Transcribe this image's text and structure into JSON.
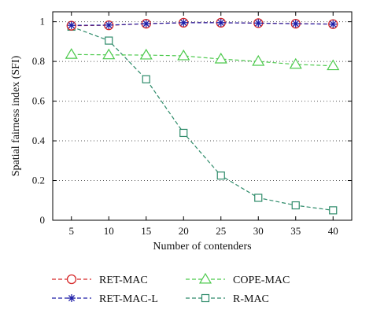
{
  "chart_data": {
    "type": "line",
    "title": "",
    "xlabel": "Number of contenders",
    "ylabel": "Spatial fairness index (SFI)",
    "x": [
      5,
      10,
      15,
      20,
      25,
      30,
      35,
      40
    ],
    "xlim": [
      2.5,
      42.5
    ],
    "ylim": [
      0,
      1.05
    ],
    "xticks": [
      5,
      10,
      15,
      20,
      25,
      30,
      35,
      40
    ],
    "yticks": [
      0,
      0.2,
      0.4,
      0.6,
      0.8,
      1
    ],
    "ytick_labels": [
      "0",
      "0.2",
      "0.4",
      "0.6",
      "0.8",
      "1"
    ],
    "grid": "horizontal dotted",
    "legend_position": "below plot",
    "series": [
      {
        "name": "RET-MAC",
        "values": [
          0.98,
          0.982,
          0.99,
          0.995,
          0.995,
          0.993,
          0.99,
          0.988
        ],
        "color": "#d62728",
        "marker": "circle"
      },
      {
        "name": "RET-MAC-L",
        "values": [
          0.982,
          0.983,
          0.99,
          0.995,
          0.995,
          0.993,
          0.99,
          0.988
        ],
        "color": "#1f1fa8",
        "marker": "asterisk"
      },
      {
        "name": "COPE-MAC",
        "values": [
          0.835,
          0.833,
          0.832,
          0.828,
          0.812,
          0.8,
          0.785,
          0.778
        ],
        "color": "#4cc94c",
        "marker": "triangle"
      },
      {
        "name": "R-MAC",
        "values": [
          0.975,
          0.905,
          0.71,
          0.44,
          0.225,
          0.113,
          0.075,
          0.05
        ],
        "color": "#2e8b6a",
        "marker": "square"
      }
    ]
  }
}
